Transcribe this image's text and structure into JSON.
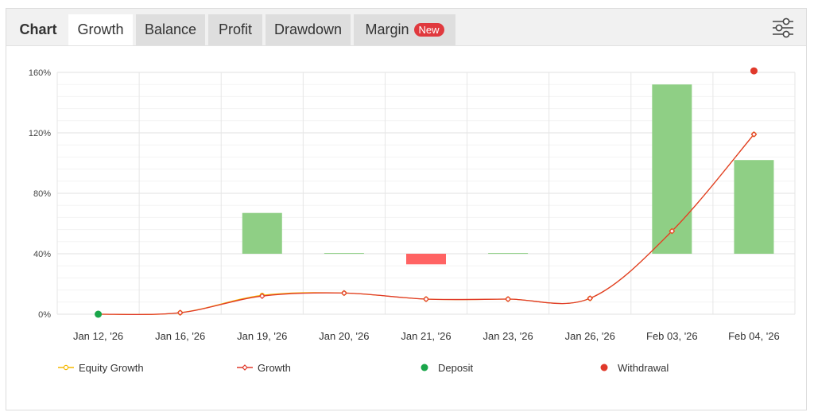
{
  "tabs": {
    "chart_label": "Chart",
    "growth": "Growth",
    "balance": "Balance",
    "profit": "Profit",
    "drawdown": "Drawdown",
    "margin": "Margin",
    "margin_badge": "New"
  },
  "icons": {
    "settings": "sliders-icon"
  },
  "colors": {
    "equity": "#f5b800",
    "growth": "#e0392b",
    "deposit": "#1aa64a",
    "withdrawal": "#e0392b",
    "positive_bar": "#8fcf85",
    "negative_bar": "#ff6363"
  },
  "chart_data": {
    "type": "line",
    "categories": [
      "Jan 12, '26",
      "Jan 16, '26",
      "Jan 19, '26",
      "Jan 20, '26",
      "Jan 21, '26",
      "Jan 23, '26",
      "Jan 26, '26",
      "Feb 03, '26",
      "Feb 04, '26"
    ],
    "ylim": [
      0,
      160
    ],
    "yticks": [
      "0%",
      "40%",
      "80%",
      "120%",
      "160%"
    ],
    "grid": true,
    "legend_position": "bottom",
    "series": [
      {
        "name": "Equity Growth",
        "kind": "line",
        "values": [
          0,
          1,
          12.5,
          14,
          10,
          10,
          10.5,
          55,
          119
        ]
      },
      {
        "name": "Growth",
        "kind": "line",
        "values": [
          0,
          1,
          12,
          14,
          10,
          10,
          10.5,
          55,
          119
        ]
      },
      {
        "name": "",
        "kind": "bar",
        "baseline": 40,
        "values": [
          null,
          null,
          27,
          0.5,
          -7,
          0.5,
          null,
          112,
          62
        ]
      }
    ],
    "markers": [
      {
        "name": "Deposit",
        "category_index": 0,
        "value": 0
      },
      {
        "name": "Withdrawal",
        "category_index": 8,
        "value": 161
      }
    ]
  }
}
